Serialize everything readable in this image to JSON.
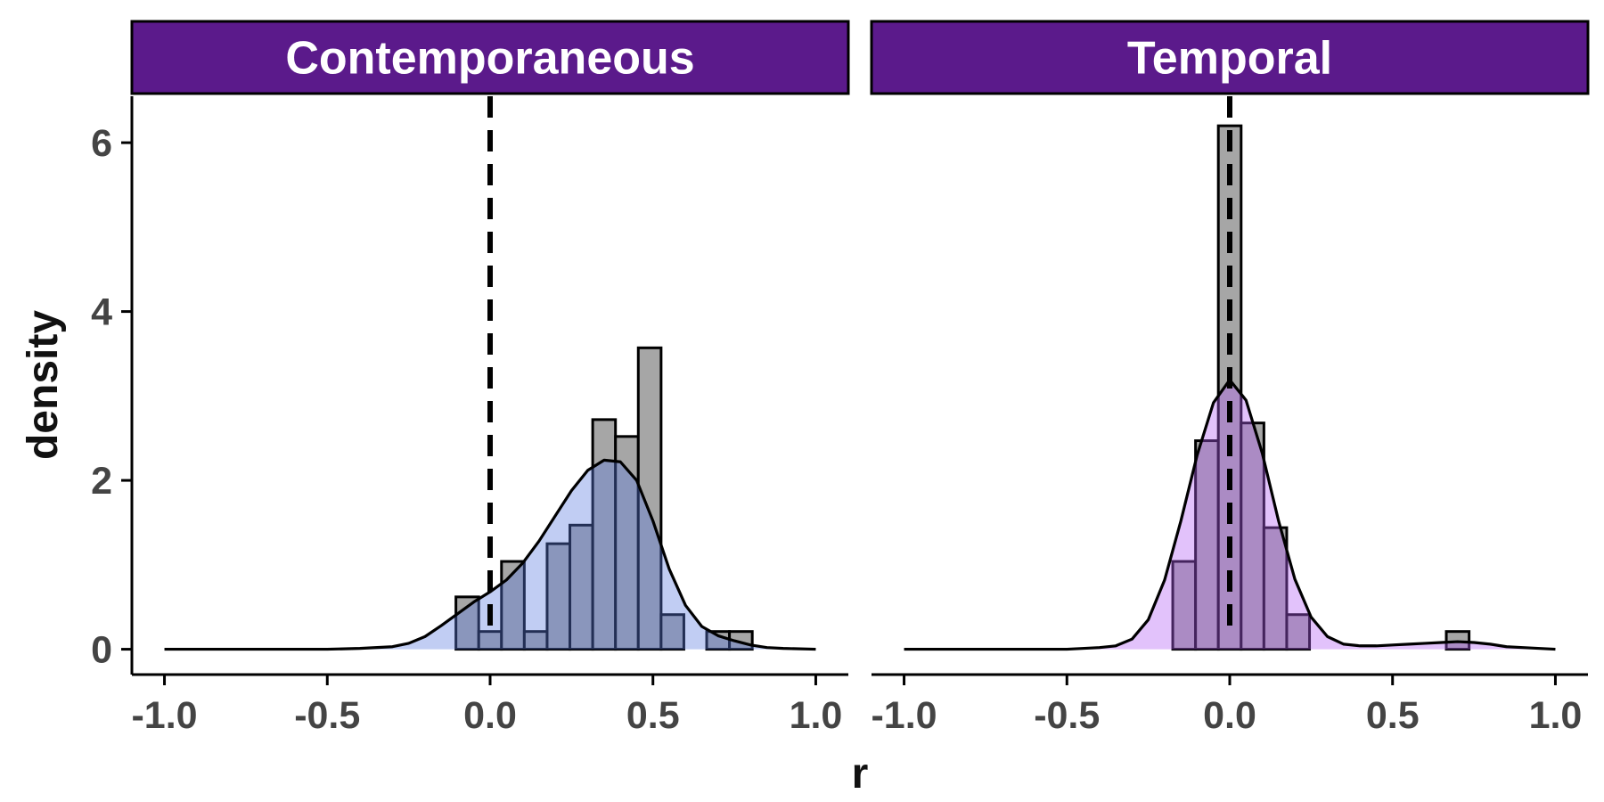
{
  "chart_data": {
    "type": "histogram",
    "xlabel": "r",
    "ylabel": "density",
    "xlim": [
      -1.1,
      1.1
    ],
    "ylim": [
      -0.3,
      6.55
    ],
    "x_ticks": [
      -1.0,
      -0.5,
      0.0,
      0.5,
      1.0
    ],
    "x_tick_labels": [
      "-1.0",
      "-0.5",
      "0.0",
      "0.5",
      "1.0"
    ],
    "y_ticks": [
      0,
      2,
      4,
      6
    ],
    "y_tick_labels": [
      "0",
      "2",
      "4",
      "6"
    ],
    "reference_line_x": 0.0,
    "grid": false,
    "strip_color": "#5B1A8B",
    "bar_color": "#A6A6A6",
    "line_color": "#000000",
    "panels": [
      {
        "title": "Contemporaneous",
        "fill_color": "#5B7BE0",
        "histogram": {
          "bin_width": 0.07,
          "bins": [
            {
              "left": -0.105,
              "density": 0.62
            },
            {
              "left": -0.035,
              "density": 0.21
            },
            {
              "left": 0.035,
              "density": 1.04
            },
            {
              "left": 0.105,
              "density": 0.21
            },
            {
              "left": 0.175,
              "density": 1.25
            },
            {
              "left": 0.245,
              "density": 1.47
            },
            {
              "left": 0.315,
              "density": 2.72
            },
            {
              "left": 0.385,
              "density": 2.52
            },
            {
              "left": 0.455,
              "density": 3.57
            },
            {
              "left": 0.525,
              "density": 0.41
            },
            {
              "left": 0.665,
              "density": 0.21
            },
            {
              "left": 0.735,
              "density": 0.21
            }
          ]
        },
        "density_curve": {
          "x": [
            -1.0,
            -0.5,
            -0.4,
            -0.3,
            -0.25,
            -0.2,
            -0.15,
            -0.1,
            -0.05,
            0.0,
            0.05,
            0.1,
            0.15,
            0.2,
            0.25,
            0.3,
            0.35,
            0.4,
            0.45,
            0.5,
            0.55,
            0.6,
            0.65,
            0.7,
            0.75,
            0.8,
            0.85,
            0.9,
            1.0
          ],
          "y": [
            0.0,
            0.0,
            0.01,
            0.03,
            0.07,
            0.15,
            0.28,
            0.42,
            0.56,
            0.68,
            0.82,
            1.02,
            1.28,
            1.58,
            1.88,
            2.12,
            2.24,
            2.22,
            2.0,
            1.52,
            0.95,
            0.52,
            0.27,
            0.16,
            0.1,
            0.05,
            0.02,
            0.01,
            0.0
          ]
        }
      },
      {
        "title": "Temporal",
        "fill_color": "#B45EF5",
        "histogram": {
          "bin_width": 0.07,
          "bins": [
            {
              "left": -0.175,
              "density": 1.04
            },
            {
              "left": -0.105,
              "density": 2.47
            },
            {
              "left": -0.035,
              "density": 6.2
            },
            {
              "left": 0.035,
              "density": 2.68
            },
            {
              "left": 0.105,
              "density": 1.44
            },
            {
              "left": 0.175,
              "density": 0.41
            },
            {
              "left": 0.665,
              "density": 0.21
            }
          ]
        },
        "density_curve": {
          "x": [
            -1.0,
            -0.5,
            -0.4,
            -0.35,
            -0.3,
            -0.25,
            -0.2,
            -0.15,
            -0.1,
            -0.05,
            0.0,
            0.05,
            0.1,
            0.15,
            0.2,
            0.25,
            0.3,
            0.35,
            0.4,
            0.45,
            0.5,
            0.55,
            0.6,
            0.65,
            0.7,
            0.75,
            0.8,
            0.85,
            0.9,
            1.0
          ],
          "y": [
            0.0,
            0.0,
            0.02,
            0.04,
            0.12,
            0.35,
            0.82,
            1.52,
            2.3,
            2.92,
            3.19,
            2.95,
            2.32,
            1.52,
            0.83,
            0.38,
            0.15,
            0.06,
            0.04,
            0.04,
            0.05,
            0.06,
            0.07,
            0.08,
            0.09,
            0.08,
            0.06,
            0.03,
            0.02,
            0.0
          ]
        }
      }
    ]
  }
}
